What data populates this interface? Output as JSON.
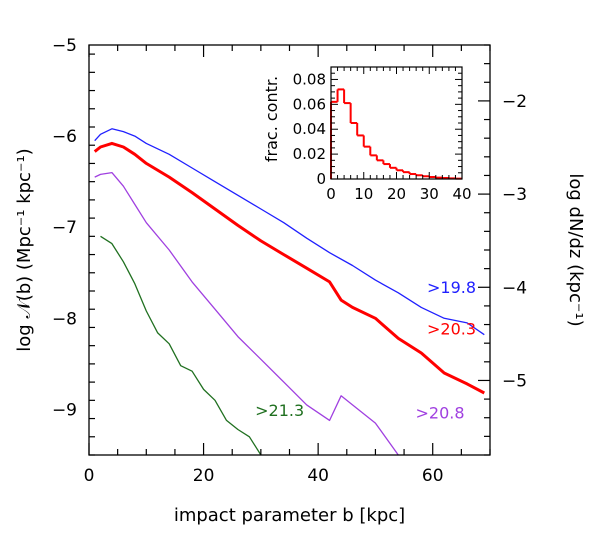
{
  "chart_data": [
    {
      "type": "line",
      "title": "",
      "xlabel": "impact parameter b [kpc]",
      "ylabel": "log 𝒩(b)  (Mpc⁻¹ kpc⁻¹)",
      "ylabel_right": "log dN/dz  (kpc⁻¹)",
      "xlim": [
        0,
        70
      ],
      "ylim": [
        -9.5,
        -5
      ],
      "xticks": [
        0,
        20,
        40,
        60
      ],
      "yticks": [
        -9,
        -8,
        -7,
        -6,
        -5
      ],
      "yticks_right": [
        -5,
        -4,
        -3,
        -2
      ],
      "ylim_right": [
        -5.8,
        -1.4
      ],
      "series": [
        {
          "name": ">19.8",
          "color": "#2020ff",
          "x": [
            1,
            2,
            4,
            6,
            8,
            10,
            14,
            18,
            22,
            26,
            30,
            34,
            38,
            42,
            46,
            50,
            54,
            58,
            62,
            66,
            69
          ],
          "y": [
            -6.05,
            -5.98,
            -5.92,
            -5.95,
            -6.0,
            -6.08,
            -6.2,
            -6.35,
            -6.5,
            -6.65,
            -6.8,
            -6.95,
            -7.12,
            -7.28,
            -7.42,
            -7.58,
            -7.72,
            -7.88,
            -8.0,
            -8.05,
            -8.18
          ]
        },
        {
          "name": ">20.3",
          "color": "#ff0000",
          "x": [
            1,
            2,
            4,
            6,
            8,
            10,
            14,
            18,
            22,
            26,
            30,
            34,
            38,
            42,
            44,
            46,
            50,
            54,
            58,
            62,
            66,
            69
          ],
          "y": [
            -6.17,
            -6.12,
            -6.08,
            -6.12,
            -6.2,
            -6.3,
            -6.45,
            -6.62,
            -6.8,
            -6.98,
            -7.15,
            -7.3,
            -7.45,
            -7.6,
            -7.8,
            -7.88,
            -8.0,
            -8.22,
            -8.38,
            -8.6,
            -8.72,
            -8.82
          ]
        },
        {
          "name": ">20.8",
          "color": "#a040e0",
          "x": [
            1,
            2,
            4,
            6,
            8,
            10,
            14,
            18,
            22,
            26,
            30,
            34,
            38,
            42,
            44,
            46,
            50,
            54
          ],
          "y": [
            -6.45,
            -6.42,
            -6.4,
            -6.55,
            -6.75,
            -6.95,
            -7.25,
            -7.6,
            -7.9,
            -8.2,
            -8.45,
            -8.7,
            -8.95,
            -9.12,
            -8.85,
            -8.95,
            -9.15,
            -9.5
          ]
        },
        {
          "name": ">21.3",
          "color": "#207020",
          "x": [
            2,
            4,
            6,
            8,
            10,
            12,
            14,
            16,
            18,
            20,
            22,
            24,
            26,
            28,
            30
          ],
          "y": [
            -7.1,
            -7.18,
            -7.38,
            -7.62,
            -7.92,
            -8.16,
            -8.28,
            -8.52,
            -8.58,
            -8.78,
            -8.9,
            -9.12,
            -9.22,
            -9.3,
            -9.5
          ]
        }
      ],
      "label_positions": [
        {
          "series": ">19.8",
          "x": 59,
          "y": -7.72
        },
        {
          "series": ">20.3",
          "x": 59,
          "y": -8.18
        },
        {
          "series": ">20.8",
          "x": 57,
          "y": -9.1
        },
        {
          "series": ">21.3",
          "x": 29,
          "y": -9.07
        }
      ]
    },
    {
      "type": "bar",
      "title": "",
      "xlabel": "",
      "ylabel": "frac. contr.",
      "xlim": [
        0,
        40
      ],
      "ylim": [
        0,
        0.09
      ],
      "xticks": [
        0,
        10,
        20,
        30,
        40
      ],
      "yticks": [
        0,
        0.02,
        0.04,
        0.06,
        0.08
      ],
      "ytick_labels": [
        "0",
        "0.02",
        "0.04",
        "0.06",
        "0.08"
      ],
      "color": "#ff0000",
      "bin_edges": [
        0,
        2,
        4,
        6,
        8,
        10,
        12,
        14,
        16,
        18,
        20,
        22,
        24,
        26,
        28,
        30,
        32,
        34,
        36,
        38,
        40
      ],
      "values": [
        0.062,
        0.072,
        0.061,
        0.045,
        0.035,
        0.026,
        0.019,
        0.015,
        0.012,
        0.009,
        0.007,
        0.0055,
        0.004,
        0.003,
        0.0022,
        0.0016,
        0.0011,
        0.0008,
        0.0005,
        0.0003
      ]
    }
  ]
}
